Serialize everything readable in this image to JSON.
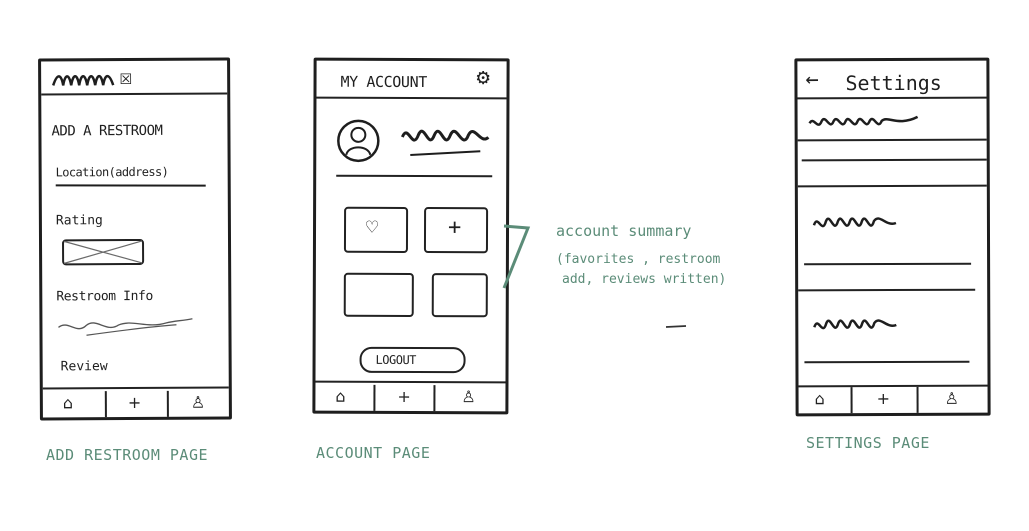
{
  "captions": {
    "add": "ADD RESTROOM PAGE",
    "account": "ACCOUNT PAGE",
    "settings": "SETTINGS PAGE"
  },
  "add_page": {
    "title": "ADD A RESTROOM",
    "location": "Location(address)",
    "rating": "Rating",
    "info": "Restroom Info",
    "review": "Review"
  },
  "account_page": {
    "title": "MY ACCOUNT",
    "logout": "LOGOUT",
    "annotation_line1": "account summary",
    "annotation_line2": "(favorites , restroom",
    "annotation_line3": "add, reviews written)"
  },
  "settings_page": {
    "title": "Settings",
    "back_glyph": "←"
  },
  "nav_glyphs": {
    "home": "⌂",
    "add": "+",
    "profile": "♙"
  },
  "icon_glyphs": {
    "close": "☒",
    "gear": "⚙",
    "heart": "♡",
    "plus": "+"
  },
  "colors": {
    "ink": "#1e1e1e",
    "annotation": "#5b8c78"
  }
}
